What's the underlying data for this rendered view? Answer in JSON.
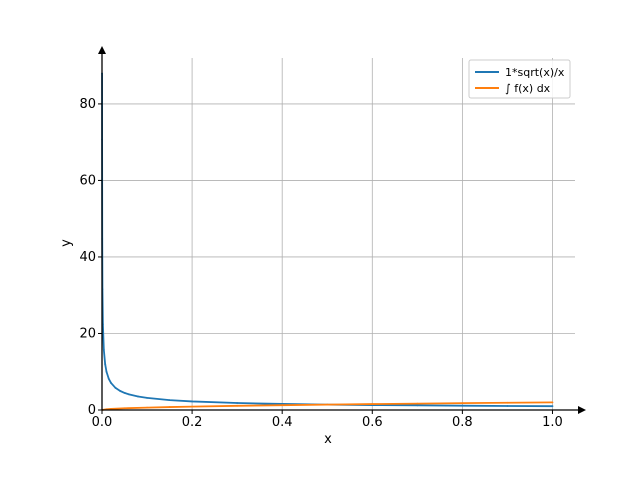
{
  "chart_data": {
    "type": "line",
    "title": "",
    "xlabel": "x",
    "ylabel": "y",
    "xlim": [
      0,
      1.05
    ],
    "ylim": [
      0,
      92
    ],
    "grid": true,
    "legend_position": "top-right",
    "x_ticks": [
      0.0,
      0.2,
      0.4,
      0.6,
      0.8,
      1.0
    ],
    "x_tick_labels": [
      "0.0",
      "0.2",
      "0.4",
      "0.6",
      "0.8",
      "1.0"
    ],
    "y_ticks": [
      0,
      20,
      40,
      60,
      80
    ],
    "y_tick_labels": [
      "0",
      "20",
      "40",
      "60",
      "80"
    ],
    "series": [
      {
        "name": "1*sqrt(x)/x",
        "color": "#1f77b4",
        "x": [
          0.000129,
          0.0002,
          0.0005,
          0.001,
          0.002,
          0.004,
          0.007,
          0.01,
          0.015,
          0.02,
          0.03,
          0.04,
          0.05,
          0.06,
          0.08,
          0.1,
          0.15,
          0.2,
          0.3,
          0.4,
          0.5,
          0.6,
          0.7,
          0.8,
          0.9,
          1.0
        ],
        "y": [
          88.0,
          70.7,
          44.7,
          31.6,
          22.4,
          15.8,
          12.0,
          10.0,
          8.16,
          7.07,
          5.77,
          5.0,
          4.47,
          4.08,
          3.54,
          3.16,
          2.58,
          2.24,
          1.83,
          1.58,
          1.41,
          1.29,
          1.2,
          1.12,
          1.05,
          1.0
        ]
      },
      {
        "name": "∫ f(x) dx",
        "color": "#ff7f0e",
        "x": [
          0.0,
          0.01,
          0.02,
          0.05,
          0.1,
          0.15,
          0.2,
          0.3,
          0.4,
          0.5,
          0.6,
          0.7,
          0.8,
          0.9,
          1.0
        ],
        "y": [
          0.0,
          0.2,
          0.28,
          0.45,
          0.63,
          0.77,
          0.89,
          1.1,
          1.26,
          1.41,
          1.55,
          1.67,
          1.79,
          1.9,
          2.0
        ]
      }
    ]
  }
}
